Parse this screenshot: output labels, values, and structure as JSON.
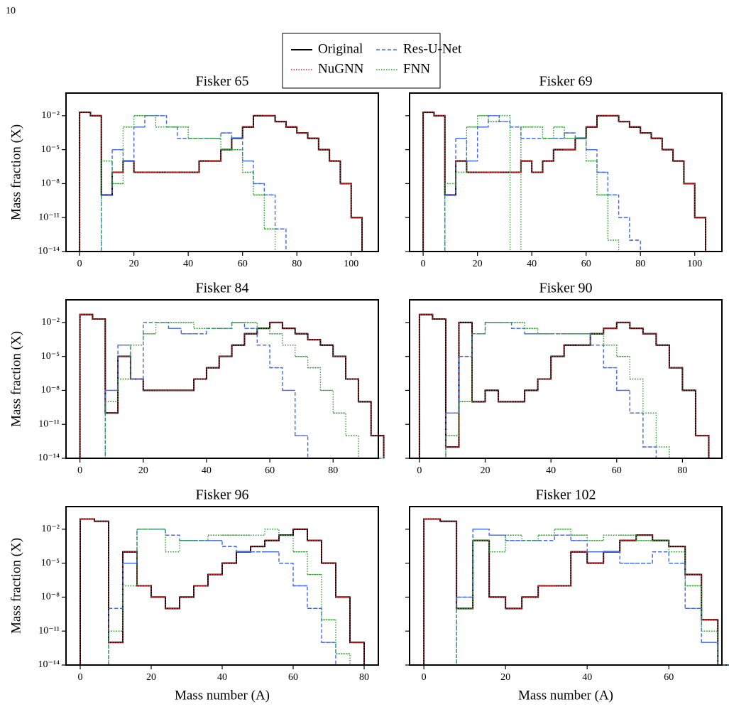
{
  "page_number": "10",
  "chart_data": [
    {
      "type": "step-histogram",
      "title": "Fisker 65",
      "ylabel": "Mass fraction (X)",
      "yscale": "log",
      "xlim": [
        -5,
        110
      ],
      "xticks": [
        0,
        20,
        40,
        60,
        80,
        100
      ],
      "ylim": [
        1e-14,
        1
      ],
      "yticks": [
        {
          "value": 1e-14,
          "label": "10⁻¹⁴"
        },
        {
          "value": 1e-11,
          "label": "10⁻¹¹"
        },
        {
          "value": 1e-08,
          "label": "10⁻⁸"
        },
        {
          "value": 1e-05,
          "label": "10⁻⁵"
        },
        {
          "value": 0.01,
          "label": "10⁻²"
        }
      ],
      "bins": [
        0,
        4,
        8,
        12,
        16,
        20,
        24,
        28,
        32,
        36,
        40,
        44,
        48,
        52,
        56,
        60,
        64,
        68,
        72,
        76,
        80,
        84,
        88,
        92,
        96,
        100,
        104,
        108
      ],
      "series": [
        {
          "name": "Original",
          "color": "#000000",
          "linestyle": "solid",
          "values": [
            0.02,
            0.01,
            1e-09,
            1e-07,
            1e-06,
            1e-07,
            1e-07,
            1e-07,
            1e-07,
            1e-07,
            1e-07,
            1e-06,
            1e-06,
            1e-05,
            0.0001,
            0.001,
            0.01,
            0.01,
            0.003,
            0.001,
            0.0003,
            0.0001,
            1e-05,
            1e-06,
            1e-08,
            1e-11,
            null
          ]
        },
        {
          "name": "NuGNN",
          "color": "#d62728",
          "linestyle": "dotted",
          "values": [
            0.02,
            0.01,
            1e-09,
            1e-07,
            1e-06,
            1e-07,
            1e-07,
            1e-07,
            1e-07,
            1e-07,
            1e-07,
            1e-06,
            1e-06,
            1e-05,
            0.0001,
            0.001,
            0.01,
            0.01,
            0.003,
            0.001,
            0.0003,
            0.0001,
            1e-05,
            1e-06,
            1e-08,
            1e-11,
            null
          ]
        },
        {
          "name": "Res-U-Net",
          "color": "#4169e1",
          "linestyle": "dashed",
          "values": [
            null,
            null,
            1e-09,
            1e-05,
            1e-06,
            0.001,
            0.01,
            0.01,
            0.001,
            0.0001,
            0.0001,
            0.0001,
            0.0001,
            0.0003,
            0.0001,
            1e-06,
            1e-08,
            1e-09,
            1e-12,
            null,
            null,
            null,
            null,
            null,
            null,
            null,
            null
          ]
        },
        {
          "name": "FNN",
          "color": "#2ca02c",
          "linestyle": "dotted",
          "values": [
            null,
            null,
            1e-06,
            1e-08,
            0.001,
            0.01,
            0.01,
            0.001,
            0.001,
            0.001,
            0.0001,
            0.0001,
            0.0001,
            1e-05,
            1e-05,
            1e-07,
            1e-09,
            1e-12,
            null,
            null,
            null,
            null,
            null,
            null,
            null,
            null,
            null
          ]
        }
      ]
    },
    {
      "type": "step-histogram",
      "title": "Fisker 69",
      "yscale": "log",
      "xlim": [
        -5,
        110
      ],
      "xticks": [
        0,
        20,
        40,
        60,
        80,
        100
      ],
      "ylim": [
        1e-14,
        1
      ],
      "yticks": [
        1e-14,
        1e-11,
        1e-08,
        1e-05,
        0.01
      ],
      "bins": [
        0,
        4,
        8,
        12,
        16,
        20,
        24,
        28,
        32,
        36,
        40,
        44,
        48,
        52,
        56,
        60,
        64,
        68,
        72,
        76,
        80,
        84,
        88,
        92,
        96,
        100,
        104,
        108
      ],
      "series": [
        {
          "name": "Original",
          "color": "#000000",
          "linestyle": "solid",
          "values": [
            0.02,
            0.01,
            1e-09,
            1e-06,
            1e-07,
            1e-07,
            1e-07,
            1e-07,
            1e-07,
            1e-06,
            1e-07,
            1e-06,
            1e-05,
            1e-05,
            0.0001,
            0.001,
            0.01,
            0.01,
            0.003,
            0.001,
            0.0003,
            0.0001,
            1e-05,
            1e-06,
            1e-08,
            1e-11,
            null
          ]
        },
        {
          "name": "NuGNN",
          "color": "#d62728",
          "linestyle": "dotted",
          "values": [
            0.02,
            0.01,
            1e-09,
            1e-06,
            1e-07,
            1e-07,
            1e-07,
            1e-07,
            1e-07,
            1e-06,
            1e-07,
            1e-06,
            1e-05,
            1e-05,
            0.0001,
            0.001,
            0.01,
            0.01,
            0.003,
            0.001,
            0.0003,
            0.0001,
            1e-05,
            1e-06,
            1e-08,
            1e-11,
            null
          ]
        },
        {
          "name": "Res-U-Net",
          "color": "#4169e1",
          "linestyle": "dashed",
          "values": [
            null,
            null,
            1e-09,
            0.0001,
            1e-06,
            0.001,
            0.01,
            0.003,
            0.001,
            0.0001,
            0.0001,
            0.0001,
            0.0001,
            0.0003,
            0.0001,
            1e-05,
            1e-07,
            1e-09,
            1e-11,
            1e-13,
            null,
            null,
            null,
            null,
            null,
            null,
            null
          ]
        },
        {
          "name": "FNN",
          "color": "#2ca02c",
          "linestyle": "dotted",
          "values": [
            null,
            null,
            1e-08,
            1e-07,
            0.001,
            0.01,
            0.003,
            0.01,
            null,
            0.001,
            0.001,
            0.0001,
            0.001,
            0.0001,
            0.0001,
            1e-06,
            1e-09,
            1e-13,
            null,
            null,
            null,
            null,
            null,
            null,
            null,
            null,
            null
          ]
        }
      ]
    },
    {
      "type": "step-histogram",
      "title": "Fisker 84",
      "ylabel": "Mass fraction (X)",
      "yscale": "log",
      "xlim": [
        -4.4,
        94.3
      ],
      "xticks": [
        0,
        20,
        40,
        60,
        80
      ],
      "ylim": [
        1e-14,
        1
      ],
      "yticks": [
        {
          "value": 1e-14,
          "label": "10⁻¹⁴"
        },
        {
          "value": 1e-11,
          "label": "10⁻¹¹"
        },
        {
          "value": 1e-08,
          "label": "10⁻⁸"
        },
        {
          "value": 1e-05,
          "label": "10⁻⁵"
        },
        {
          "value": 0.01,
          "label": "10⁻²"
        }
      ],
      "bins": [
        0,
        4,
        8,
        12,
        16,
        20,
        24,
        28,
        32,
        36,
        40,
        44,
        48,
        52,
        56,
        60,
        64,
        68,
        72,
        76,
        80,
        84,
        88,
        92,
        96
      ],
      "series": [
        {
          "name": "Original",
          "color": "#000000",
          "linestyle": "solid",
          "values": [
            0.05,
            0.02,
            1e-10,
            1e-05,
            1e-07,
            1e-08,
            1e-08,
            1e-08,
            1e-08,
            1e-07,
            1e-06,
            1e-05,
            0.0001,
            0.001,
            0.003,
            0.01,
            0.003,
            0.001,
            0.0003,
            0.0001,
            1e-05,
            1e-07,
            1e-09,
            1e-12
          ]
        },
        {
          "name": "NuGNN",
          "color": "#d62728",
          "linestyle": "dotted",
          "values": [
            0.05,
            0.02,
            1e-10,
            1e-05,
            1e-07,
            1e-08,
            1e-08,
            1e-08,
            1e-08,
            1e-07,
            1e-06,
            1e-05,
            0.0001,
            0.001,
            0.003,
            0.01,
            0.003,
            0.001,
            0.0003,
            0.0001,
            1e-05,
            1e-07,
            1e-09,
            1e-12
          ]
        },
        {
          "name": "Res-U-Net",
          "color": "#4169e1",
          "linestyle": "dashed",
          "values": [
            null,
            null,
            1e-08,
            0.0001,
            1e-07,
            0.01,
            0.01,
            0.003,
            0.001,
            0.001,
            0.003,
            0.003,
            0.01,
            0.003,
            0.0001,
            1e-06,
            1e-08,
            1e-12,
            null,
            null,
            null,
            null,
            null,
            null
          ]
        },
        {
          "name": "FNN",
          "color": "#2ca02c",
          "linestyle": "dotted",
          "values": [
            null,
            null,
            1e-09,
            1e-07,
            0.0001,
            0.001,
            0.01,
            0.01,
            0.01,
            0.003,
            0.003,
            0.003,
            0.01,
            0.01,
            0.003,
            0.001,
            0.0001,
            1e-05,
            1e-06,
            1e-08,
            1e-10,
            1e-12,
            null,
            null
          ]
        }
      ]
    },
    {
      "type": "step-histogram",
      "title": "Fisker 90",
      "yscale": "log",
      "xlim": [
        -3,
        92
      ],
      "xticks": [
        0,
        20,
        40,
        60,
        80
      ],
      "ylim": [
        1e-14,
        1
      ],
      "yticks": [
        1e-14,
        1e-11,
        1e-08,
        1e-05,
        0.01
      ],
      "bins": [
        0,
        4,
        8,
        12,
        16,
        20,
        24,
        28,
        32,
        36,
        40,
        44,
        48,
        52,
        56,
        60,
        64,
        68,
        72,
        76,
        80,
        84,
        88,
        92
      ],
      "series": [
        {
          "name": "Original",
          "color": "#000000",
          "linestyle": "solid",
          "values": [
            0.05,
            0.02,
            1e-13,
            0.01,
            1e-09,
            1e-08,
            1e-09,
            1e-09,
            1e-08,
            1e-07,
            1e-05,
            0.0001,
            0.0001,
            0.001,
            0.003,
            0.01,
            0.003,
            0.001,
            0.0001,
            1e-06,
            1e-08,
            1e-12,
            null
          ]
        },
        {
          "name": "NuGNN",
          "color": "#d62728",
          "linestyle": "dotted",
          "values": [
            0.05,
            0.02,
            1e-13,
            0.01,
            1e-09,
            1e-08,
            1e-09,
            1e-09,
            1e-08,
            1e-07,
            1e-05,
            0.0001,
            0.0001,
            0.001,
            0.003,
            0.01,
            0.003,
            0.001,
            0.0001,
            1e-06,
            1e-08,
            1e-12,
            null
          ]
        },
        {
          "name": "Res-U-Net",
          "color": "#4169e1",
          "linestyle": "dashed",
          "values": [
            null,
            null,
            1e-10,
            1e-05,
            0.001,
            0.01,
            0.01,
            0.003,
            0.001,
            0.001,
            0.001,
            0.001,
            0.001,
            0.0001,
            1e-06,
            1e-08,
            1e-10,
            1e-13,
            null,
            null,
            null,
            null,
            null
          ]
        },
        {
          "name": "FNN",
          "color": "#2ca02c",
          "linestyle": "dotted",
          "values": [
            null,
            null,
            1e-12,
            1e-09,
            0.001,
            0.01,
            0.01,
            0.01,
            0.003,
            0.001,
            0.001,
            0.001,
            0.001,
            0.001,
            0.0001,
            1e-05,
            1e-07,
            1e-10,
            1e-13,
            null,
            null,
            null,
            null
          ]
        }
      ]
    },
    {
      "type": "step-histogram",
      "title": "Fisker 96",
      "ylabel": "Mass fraction (X)",
      "xlabel": "Mass number (A)",
      "yscale": "log",
      "xlim": [
        -4,
        84
      ],
      "xticks": [
        0,
        20,
        40,
        60,
        80
      ],
      "ylim": [
        1e-14,
        1
      ],
      "yticks": [
        {
          "value": 1e-14,
          "label": "10⁻¹⁴"
        },
        {
          "value": 1e-11,
          "label": "10⁻¹¹"
        },
        {
          "value": 1e-08,
          "label": "10⁻⁸"
        },
        {
          "value": 1e-05,
          "label": "10⁻⁵"
        },
        {
          "value": 0.01,
          "label": "10⁻²"
        }
      ],
      "bins": [
        0,
        4,
        8,
        12,
        16,
        20,
        24,
        28,
        32,
        36,
        40,
        44,
        48,
        52,
        56,
        60,
        64,
        68,
        72,
        76,
        80,
        84
      ],
      "series": [
        {
          "name": "Original",
          "color": "#000000",
          "linestyle": "solid",
          "values": [
            0.08,
            0.05,
            1e-12,
            0.0001,
            1e-07,
            1e-08,
            1e-09,
            1e-08,
            1e-07,
            1e-06,
            1e-05,
            0.0001,
            0.0003,
            0.001,
            0.003,
            0.01,
            0.001,
            1e-05,
            1e-08,
            1e-12,
            null
          ]
        },
        {
          "name": "NuGNN",
          "color": "#d62728",
          "linestyle": "dotted",
          "values": [
            0.08,
            0.05,
            1e-12,
            0.0001,
            1e-07,
            1e-08,
            1e-09,
            1e-08,
            1e-07,
            1e-06,
            1e-05,
            0.0001,
            0.0003,
            0.001,
            0.003,
            0.01,
            0.001,
            1e-05,
            1e-08,
            1e-12,
            null
          ]
        },
        {
          "name": "Res-U-Net",
          "color": "#4169e1",
          "linestyle": "dashed",
          "values": [
            null,
            null,
            1e-09,
            1e-05,
            0.01,
            0.01,
            0.003,
            0.001,
            0.001,
            0.001,
            0.0003,
            0.0001,
            0.0001,
            0.0001,
            1e-05,
            1e-07,
            1e-09,
            1e-12,
            null,
            null,
            null
          ]
        },
        {
          "name": "FNN",
          "color": "#2ca02c",
          "linestyle": "dotted",
          "values": [
            null,
            null,
            1e-11,
            1e-07,
            0.01,
            0.01,
            0.0001,
            0.001,
            0.001,
            0.003,
            0.003,
            0.003,
            0.003,
            0.01,
            0.003,
            0.0001,
            1e-06,
            1e-10,
            1e-13,
            null,
            null
          ]
        }
      ]
    },
    {
      "type": "step-histogram",
      "title": "Fisker 102",
      "xlabel": "Mass number (A)",
      "yscale": "log",
      "xlim": [
        -3.5,
        73
      ],
      "xticks": [
        0,
        20,
        40,
        60
      ],
      "ylim": [
        1e-14,
        1
      ],
      "yticks": [
        1e-14,
        1e-11,
        1e-08,
        1e-05,
        0.01
      ],
      "bins": [
        0,
        4,
        8,
        12,
        16,
        20,
        24,
        28,
        32,
        36,
        40,
        44,
        48,
        52,
        56,
        60,
        64,
        68,
        72,
        76
      ],
      "series": [
        {
          "name": "Original",
          "color": "#000000",
          "linestyle": "solid",
          "values": [
            0.08,
            0.05,
            1e-09,
            0.001,
            1e-08,
            1e-09,
            1e-08,
            1e-07,
            1e-07,
            0.0001,
            1e-05,
            0.0001,
            0.001,
            0.003,
            0.001,
            0.0003,
            1e-06,
            1e-10,
            null
          ]
        },
        {
          "name": "NuGNN",
          "color": "#d62728",
          "linestyle": "dotted",
          "values": [
            0.08,
            0.05,
            1e-09,
            0.001,
            1e-08,
            1e-09,
            1e-08,
            1e-07,
            1e-07,
            0.0001,
            1e-05,
            0.0001,
            0.001,
            0.003,
            0.001,
            0.0003,
            1e-06,
            1e-10,
            null
          ]
        },
        {
          "name": "Res-U-Net",
          "color": "#4169e1",
          "linestyle": "dashed",
          "values": [
            null,
            null,
            1e-08,
            0.01,
            0.003,
            0.001,
            0.001,
            0.001,
            0.003,
            0.001,
            0.0001,
            0.0001,
            1e-05,
            1e-05,
            0.0001,
            1e-05,
            1e-09,
            1e-12,
            null
          ]
        },
        {
          "name": "FNN",
          "color": "#2ca02c",
          "linestyle": "dotted",
          "values": [
            null,
            null,
            1e-09,
            0.001,
            0.0001,
            0.003,
            0.001,
            0.003,
            0.01,
            0.003,
            0.001,
            0.003,
            0.003,
            0.001,
            0.001,
            0.0001,
            1e-07,
            1e-11,
            null
          ]
        }
      ]
    }
  ]
}
